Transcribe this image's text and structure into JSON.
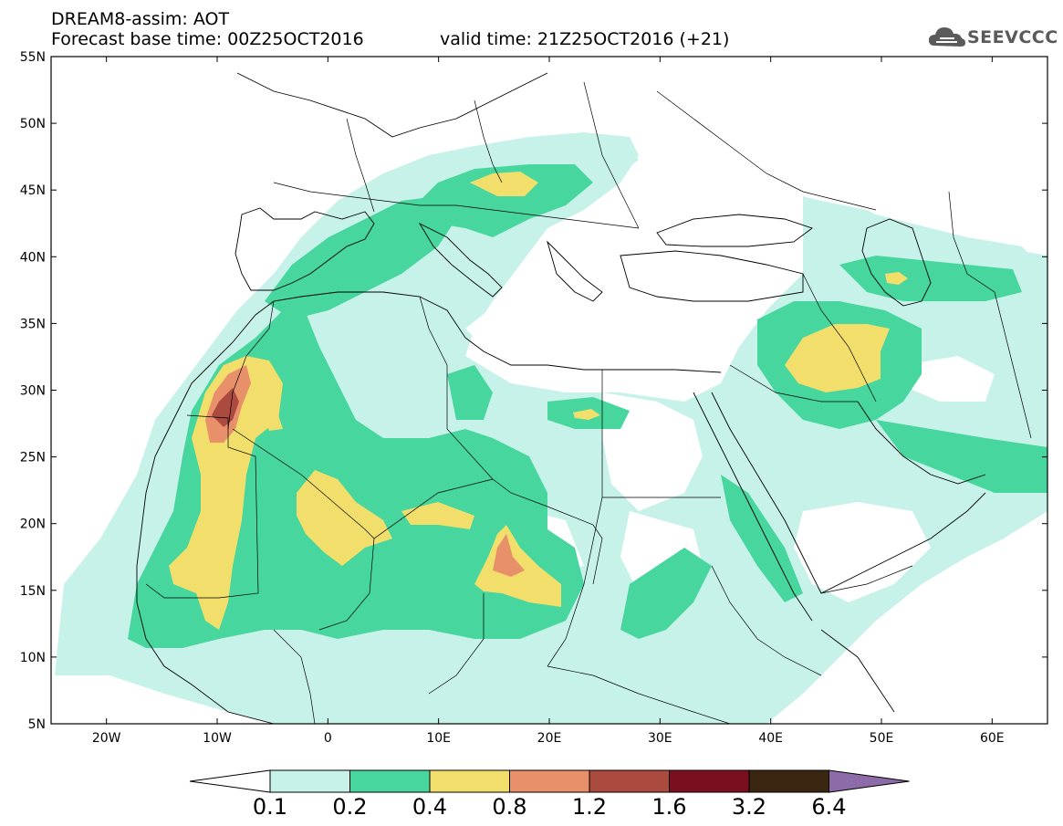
{
  "header": {
    "line1": "DREAM8-assim: AOT",
    "line2": "Forecast base time: 00Z25OCT2016",
    "valid": "valid time: 21Z25OCT2016 (+21)",
    "logo_text": "SEEVCCC"
  },
  "map": {
    "lat_labels": [
      "55N",
      "50N",
      "45N",
      "40N",
      "35N",
      "30N",
      "25N",
      "20N",
      "15N",
      "10N",
      "5N"
    ],
    "lon_labels": [
      "20W",
      "10W",
      "0",
      "10E",
      "20E",
      "30E",
      "40E",
      "50E",
      "60E"
    ],
    "lat_values": [
      55,
      50,
      45,
      40,
      35,
      30,
      25,
      20,
      15,
      10,
      5
    ],
    "lon_values": [
      -20,
      -10,
      0,
      10,
      20,
      30,
      40,
      50,
      60
    ],
    "extent": {
      "lon": [
        -25,
        65
      ],
      "lat": [
        5,
        55
      ]
    }
  },
  "colorbar": {
    "labels": [
      "0.1",
      "0.2",
      "0.4",
      "0.8",
      "1.2",
      "1.6",
      "3.2",
      "6.4"
    ],
    "colors": [
      "#ffffff",
      "#c6f2ea",
      "#47d69e",
      "#f2de6b",
      "#e8906a",
      "#ab4a3e",
      "#7a0f20",
      "#3b2612",
      "#8c6ba8"
    ]
  }
}
